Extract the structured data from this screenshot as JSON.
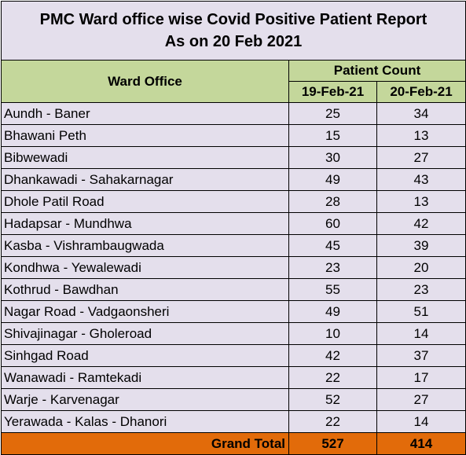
{
  "title_line1": "PMC Ward office wise Covid Positive Patient Report",
  "title_line2": "As on 20 Feb 2021",
  "headers": {
    "ward_office": "Ward Office",
    "patient_count": "Patient Count",
    "date1": "19-Feb-21",
    "date2": "20-Feb-21"
  },
  "rows": [
    {
      "ward": "Aundh - Baner",
      "d1": "25",
      "d2": "34"
    },
    {
      "ward": "Bhawani Peth",
      "d1": "15",
      "d2": "13"
    },
    {
      "ward": "Bibwewadi",
      "d1": "30",
      "d2": "27"
    },
    {
      "ward": "Dhankawadi - Sahakarnagar",
      "d1": "49",
      "d2": "43"
    },
    {
      "ward": "Dhole Patil Road",
      "d1": "28",
      "d2": "13"
    },
    {
      "ward": "Hadapsar - Mundhwa",
      "d1": "60",
      "d2": "42"
    },
    {
      "ward": "Kasba - Vishrambaugwada",
      "d1": "45",
      "d2": "39"
    },
    {
      "ward": "Kondhwa - Yewalewadi",
      "d1": "23",
      "d2": "20"
    },
    {
      "ward": "Kothrud - Bawdhan",
      "d1": "55",
      "d2": "23"
    },
    {
      "ward": "Nagar Road - Vadgaonsheri",
      "d1": "49",
      "d2": "51"
    },
    {
      "ward": "Shivajinagar - Gholeroad",
      "d1": "10",
      "d2": "14"
    },
    {
      "ward": "Sinhgad Road",
      "d1": "42",
      "d2": "37"
    },
    {
      "ward": "Wanawadi - Ramtekadi",
      "d1": "22",
      "d2": "17"
    },
    {
      "ward": "Warje - Karvenagar",
      "d1": "52",
      "d2": "27"
    },
    {
      "ward": "Yerawada - Kalas - Dhanori",
      "d1": "22",
      "d2": "14"
    }
  ],
  "total": {
    "label": "Grand Total",
    "d1": "527",
    "d2": "414"
  },
  "colors": {
    "title_bg": "#e4dfec",
    "header_bg": "#c4d79b",
    "body_bg": "#e4dfec",
    "total_bg": "#e26b0a"
  }
}
